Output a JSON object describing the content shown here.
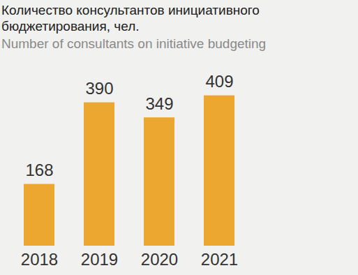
{
  "chart_data": {
    "type": "bar",
    "title": "Количество консультантов инициативного бюджетирования, чел.",
    "subtitle": "Number of consultants on initiative budgeting",
    "categories": [
      "2018",
      "2019",
      "2020",
      "2021"
    ],
    "values": [
      168,
      390,
      349,
      409
    ],
    "color": "#eba72f",
    "ylim": [
      0,
      450
    ],
    "data_labels": true,
    "tick_labels": "x",
    "grid": false
  }
}
